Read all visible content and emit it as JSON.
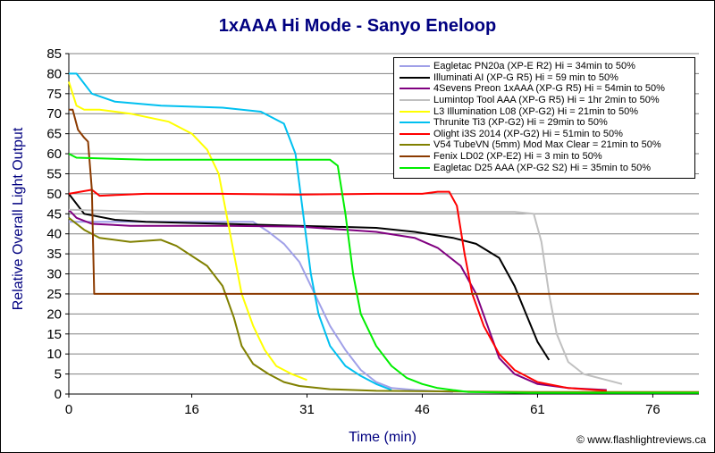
{
  "chart_data": {
    "type": "line",
    "title": "1xAAA Hi Mode - Sanyo Eneloop",
    "xlabel": "Time (min)",
    "ylabel": "Relative Overall Light Output",
    "xlim": [
      0,
      82
    ],
    "ylim": [
      0,
      85
    ],
    "x_ticks": [
      0,
      16,
      31,
      46,
      61,
      76
    ],
    "y_ticks": [
      0,
      5,
      10,
      15,
      20,
      25,
      30,
      35,
      40,
      45,
      50,
      55,
      60,
      65,
      70,
      75,
      80,
      85
    ],
    "grid": "horizontal",
    "legend_position": "top-right",
    "credit": "© www.flashlightreviews.ca",
    "series": [
      {
        "name": "Eagletac PN20a (XP-E R2) Hi = 34min to 50%",
        "color": "#a0a0e8",
        "points": [
          [
            0,
            43
          ],
          [
            5,
            43
          ],
          [
            15,
            43
          ],
          [
            22,
            43
          ],
          [
            24,
            43
          ],
          [
            26,
            40.5
          ],
          [
            28,
            37.5
          ],
          [
            30,
            33
          ],
          [
            32,
            25
          ],
          [
            34,
            17
          ],
          [
            36,
            11
          ],
          [
            38,
            6
          ],
          [
            40,
            3
          ],
          [
            42,
            1.5
          ],
          [
            45,
            1
          ],
          [
            50,
            0.5
          ]
        ]
      },
      {
        "name": "Illuminati AI (XP-G R5) Hi = 59 min to 50%",
        "color": "#000000",
        "points": [
          [
            0,
            50
          ],
          [
            2,
            45
          ],
          [
            6,
            43.5
          ],
          [
            10,
            43
          ],
          [
            20,
            42.5
          ],
          [
            30,
            42
          ],
          [
            40,
            41.5
          ],
          [
            45,
            40.5
          ],
          [
            50,
            39
          ],
          [
            53,
            37.5
          ],
          [
            56,
            34
          ],
          [
            58,
            27
          ],
          [
            59.5,
            20
          ],
          [
            61,
            13
          ],
          [
            62.5,
            8.5
          ]
        ]
      },
      {
        "name": "4Sevens Preon 1xAAA (XP-G R5) Hi = 54min to 50%",
        "color": "#800080",
        "points": [
          [
            0,
            46
          ],
          [
            1,
            44
          ],
          [
            3,
            42.5
          ],
          [
            8,
            42
          ],
          [
            20,
            42
          ],
          [
            30,
            41.8
          ],
          [
            40,
            40.5
          ],
          [
            45,
            39
          ],
          [
            48,
            36.5
          ],
          [
            51,
            32
          ],
          [
            53,
            25
          ],
          [
            54.5,
            17
          ],
          [
            56,
            9
          ],
          [
            58,
            5
          ],
          [
            61,
            2.5
          ],
          [
            65,
            1.5
          ],
          [
            70,
            1
          ]
        ]
      },
      {
        "name": "Lumintop Tool AAA (XP-G R5) Hi = 1hr 2min to 50%",
        "color": "#c0c0c0",
        "points": [
          [
            0,
            46
          ],
          [
            10,
            45.5
          ],
          [
            20,
            45.5
          ],
          [
            30,
            45.5
          ],
          [
            40,
            45.5
          ],
          [
            50,
            45.5
          ],
          [
            58,
            45.5
          ],
          [
            60.5,
            45
          ],
          [
            61.5,
            38
          ],
          [
            62.5,
            25
          ],
          [
            63.5,
            15
          ],
          [
            65,
            8
          ],
          [
            67,
            5
          ],
          [
            70,
            3.5
          ],
          [
            72,
            2.5
          ]
        ]
      },
      {
        "name": "L3 Illumination L08 (XP-G2) Hi = 21min to 50%",
        "color": "#ffff00",
        "points": [
          [
            0,
            78
          ],
          [
            1,
            72
          ],
          [
            2,
            71
          ],
          [
            4,
            71
          ],
          [
            8,
            70
          ],
          [
            13,
            68
          ],
          [
            16,
            65
          ],
          [
            18,
            61
          ],
          [
            19.5,
            55
          ],
          [
            20.5,
            45
          ],
          [
            21.5,
            35
          ],
          [
            22.5,
            25
          ],
          [
            24,
            17
          ],
          [
            25.5,
            11
          ],
          [
            27,
            7
          ],
          [
            29,
            5
          ],
          [
            31,
            3.5
          ]
        ]
      },
      {
        "name": "Thrunite Ti3 (XP-G2) Hi = 29min to 50%",
        "color": "#00c0f0",
        "points": [
          [
            0,
            80
          ],
          [
            1,
            80
          ],
          [
            3,
            75
          ],
          [
            6,
            73
          ],
          [
            12,
            72
          ],
          [
            20,
            71.5
          ],
          [
            25,
            70.5
          ],
          [
            28,
            67.5
          ],
          [
            29.5,
            60
          ],
          [
            30.5,
            45
          ],
          [
            31.5,
            30
          ],
          [
            32.5,
            20
          ],
          [
            34,
            12
          ],
          [
            36,
            7
          ],
          [
            38,
            4.5
          ],
          [
            40,
            2.5
          ],
          [
            42,
            1
          ]
        ]
      },
      {
        "name": "Olight i3S 2014 (XP-G2) Hi = 51min to 50%",
        "color": "#ff0000",
        "points": [
          [
            0,
            50
          ],
          [
            3,
            51
          ],
          [
            4,
            49.5
          ],
          [
            10,
            50
          ],
          [
            20,
            50
          ],
          [
            30,
            49.8
          ],
          [
            40,
            50
          ],
          [
            46,
            50
          ],
          [
            48,
            50.5
          ],
          [
            49.5,
            50.5
          ],
          [
            50.5,
            47
          ],
          [
            51.5,
            35
          ],
          [
            52.5,
            25
          ],
          [
            54,
            17
          ],
          [
            56,
            10
          ],
          [
            58,
            6
          ],
          [
            61,
            3
          ],
          [
            65,
            1.5
          ],
          [
            70,
            0.8
          ]
        ]
      },
      {
        "name": "V54 TubeVN (5mm) Mod Max Clear = 21min to 50%",
        "color": "#808000",
        "points": [
          [
            0,
            44
          ],
          [
            2,
            41
          ],
          [
            4,
            39
          ],
          [
            8,
            38
          ],
          [
            12,
            38.5
          ],
          [
            14,
            37
          ],
          [
            18,
            32
          ],
          [
            20,
            27
          ],
          [
            21.5,
            19
          ],
          [
            22.5,
            12
          ],
          [
            24,
            7.5
          ],
          [
            26,
            5
          ],
          [
            28,
            3
          ],
          [
            30,
            2
          ],
          [
            34,
            1.2
          ],
          [
            40,
            0.8
          ],
          [
            60,
            0.5
          ],
          [
            82,
            0.5
          ]
        ]
      },
      {
        "name": "Fenix LD02 (XP-E2) Hi = 3 min to 50%",
        "color": "#8b3a00",
        "points": [
          [
            0,
            71
          ],
          [
            0.5,
            71
          ],
          [
            1.2,
            66
          ],
          [
            2,
            64
          ],
          [
            2.5,
            63
          ],
          [
            3,
            51
          ],
          [
            3.3,
            25
          ],
          [
            10,
            25
          ],
          [
            20,
            25
          ],
          [
            40,
            25
          ],
          [
            60,
            25
          ],
          [
            82,
            25
          ]
        ]
      },
      {
        "name": "Eagletac D25 AAA (XP-G2 S2) Hi = 35min to 50%",
        "color": "#00ee00",
        "points": [
          [
            0,
            60
          ],
          [
            1,
            59
          ],
          [
            10,
            58.5
          ],
          [
            20,
            58.5
          ],
          [
            30,
            58.5
          ],
          [
            34,
            58.5
          ],
          [
            35,
            57
          ],
          [
            36,
            45
          ],
          [
            37,
            30
          ],
          [
            38,
            20
          ],
          [
            40,
            12
          ],
          [
            42,
            7
          ],
          [
            44,
            4
          ],
          [
            46,
            2.5
          ],
          [
            48,
            1.5
          ],
          [
            52,
            0.5
          ],
          [
            60,
            0.3
          ],
          [
            82,
            0.3
          ]
        ]
      }
    ]
  }
}
